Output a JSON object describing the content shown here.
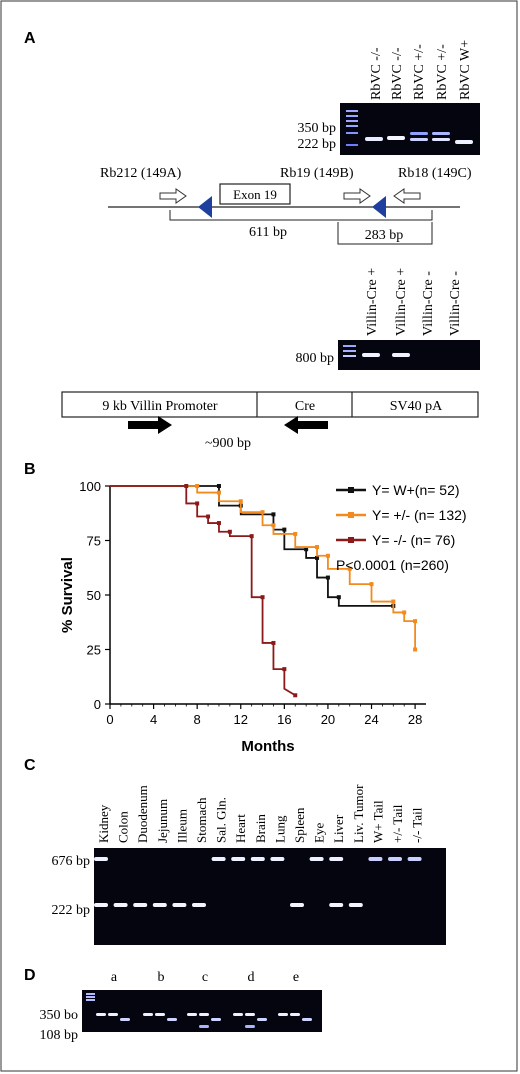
{
  "panels": {
    "A": {
      "letter": "A",
      "gel1": {
        "lanes": [
          "RbVC -/-",
          "RbVC -/-",
          "RbVC +/-",
          "RbVC +/-",
          "RbVC W+"
        ],
        "markers": [
          "350 bp",
          "222 bp"
        ]
      },
      "construct": {
        "primers": [
          "Rb212 (149A)",
          "Rb19 (149B)",
          "Rb18 (149C)"
        ],
        "exon": "Exon 19",
        "products": [
          "611 bp",
          "283 bp"
        ]
      },
      "gel2": {
        "lanes": [
          "Villin-Cre +",
          "Villin-Cre +",
          "Villin-Cre -",
          "Villin-Cre -"
        ],
        "marker": "800 bp"
      },
      "transgene": {
        "segments": [
          "9 kb Villin Promoter",
          "Cre",
          "SV40 pA"
        ],
        "product": "~900 bp"
      }
    },
    "B": {
      "letter": "B"
    },
    "C": {
      "letter": "C",
      "lanes": [
        "Kidney",
        "Colon",
        "Duodenum",
        "Jejunum",
        "Illeum",
        "Stomach",
        "Sal. Gln.",
        "Heart",
        "Brain",
        "Lung",
        "Spleen",
        "Eye",
        "Liver",
        "Liv. Tumor",
        "W+ Tail",
        "+/- Tail",
        "-/- Tail"
      ],
      "markers": [
        "676 bp",
        "222 bp"
      ]
    },
    "D": {
      "letter": "D",
      "groups": [
        "a",
        "b",
        "c",
        "d",
        "e"
      ],
      "markers": [
        "350 bo",
        "108 bp"
      ]
    }
  },
  "chart_data": {
    "type": "line",
    "title": "",
    "xlabel": "Months",
    "ylabel": "% Survival",
    "xlim": [
      0,
      29
    ],
    "ylim": [
      0,
      100
    ],
    "xticks": [
      0,
      4,
      8,
      12,
      16,
      20,
      24,
      28
    ],
    "yticks": [
      0,
      25,
      50,
      75,
      100
    ],
    "grid": false,
    "legend_position": "top-right",
    "annotation": "P<0.0001 (n=260)",
    "series": [
      {
        "name": "Y= W+(n=  52)",
        "color": "#111111",
        "x": [
          0,
          10,
          10,
          12,
          12,
          15,
          15,
          16,
          16,
          18,
          18,
          19,
          19,
          20,
          20,
          21,
          21,
          26
        ],
        "y": [
          100,
          100,
          91,
          91,
          87,
          87,
          80,
          80,
          71,
          71,
          67,
          67,
          58,
          58,
          49,
          49,
          45,
          45
        ]
      },
      {
        "name": "Y= +/- (n= 132)",
        "color": "#f28a1e",
        "x": [
          0,
          8,
          8,
          10,
          10,
          12,
          12,
          14,
          14,
          15,
          15,
          17,
          17,
          19,
          19,
          20,
          20,
          22,
          22,
          24,
          24,
          26,
          26,
          27,
          27,
          28,
          28
        ],
        "y": [
          100,
          100,
          97,
          97,
          93,
          93,
          88,
          88,
          82,
          82,
          78,
          78,
          72,
          72,
          68,
          68,
          62,
          62,
          55,
          55,
          47,
          47,
          42,
          42,
          38,
          38,
          25
        ]
      },
      {
        "name": "Y= -/-  (n=  76)",
        "color": "#8b1a1a",
        "x": [
          0,
          7,
          7,
          8,
          8,
          9,
          9,
          10,
          10,
          11,
          11,
          13,
          13,
          14,
          14,
          15,
          15,
          16,
          16,
          17
        ],
        "y": [
          100,
          100,
          92,
          92,
          86,
          86,
          83,
          83,
          79,
          79,
          77,
          77,
          49,
          49,
          28,
          28,
          16,
          16,
          7,
          4
        ]
      }
    ]
  }
}
